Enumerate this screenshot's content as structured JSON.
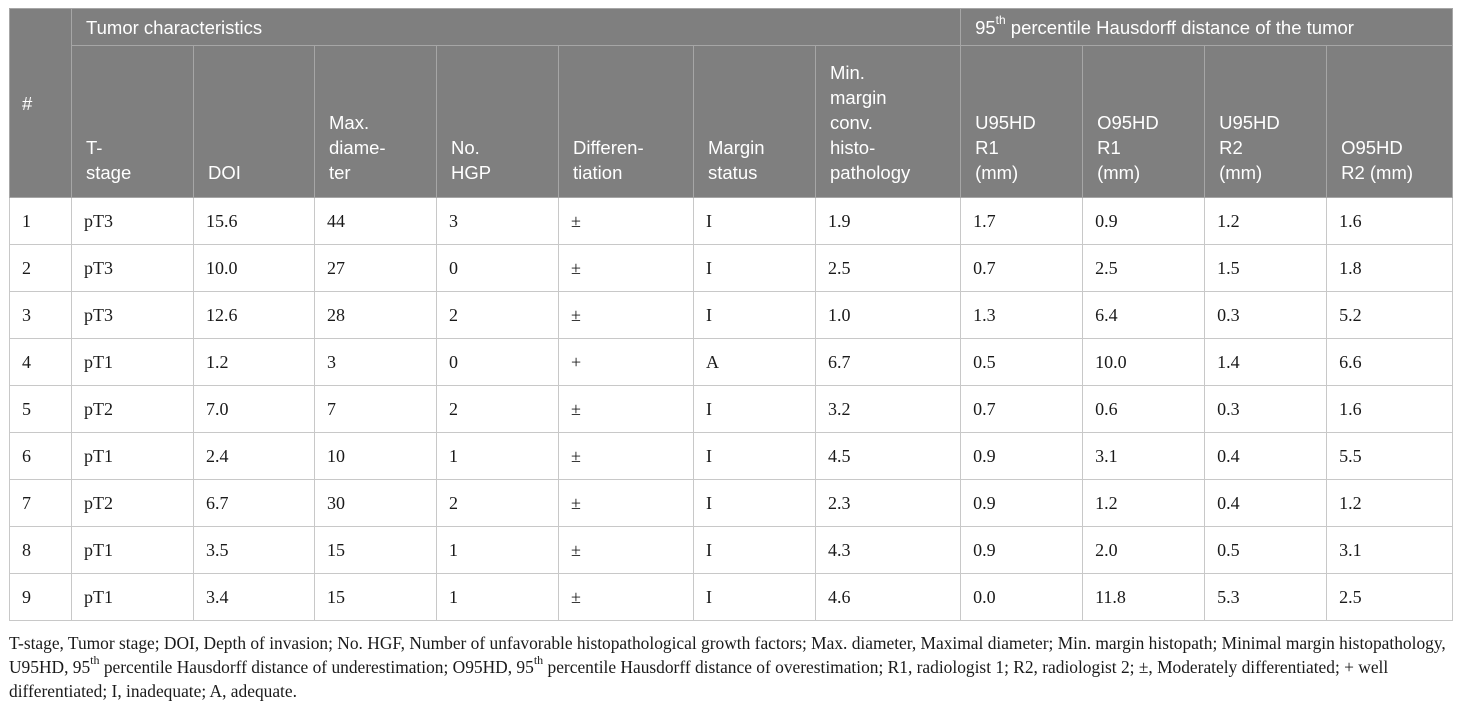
{
  "table": {
    "group_headers": {
      "hash": "#",
      "tumor": "Tumor characteristics",
      "hd_pre": "95",
      "hd_sup": "th",
      "hd_post": " percentile Hausdorff distance of the tumor"
    },
    "columns": [
      "T-\nstage",
      "DOI",
      "Max.\ndiame-\nter",
      "No.\nHGP",
      "Differen-\ntiation",
      "Margin\nstatus",
      "Min.\nmargin\nconv.\nhisto-\npathology",
      "U95HD\nR1\n(mm)",
      "O95HD\nR1\n(mm)",
      "U95HD\nR2\n(mm)",
      "O95HD\nR2 (mm)"
    ],
    "rows": [
      [
        "1",
        "pT3",
        "15.6",
        "44",
        "3",
        "±",
        "I",
        "1.9",
        "1.7",
        "0.9",
        "1.2",
        "1.6"
      ],
      [
        "2",
        "pT3",
        "10.0",
        "27",
        "0",
        "±",
        "I",
        "2.5",
        "0.7",
        "2.5",
        "1.5",
        "1.8"
      ],
      [
        "3",
        "pT3",
        "12.6",
        "28",
        "2",
        "±",
        "I",
        "1.0",
        "1.3",
        "6.4",
        "0.3",
        "5.2"
      ],
      [
        "4",
        "pT1",
        "1.2",
        "3",
        "0",
        "+",
        "A",
        "6.7",
        "0.5",
        "10.0",
        "1.4",
        "6.6"
      ],
      [
        "5",
        "pT2",
        "7.0",
        "7",
        "2",
        "±",
        "I",
        "3.2",
        "0.7",
        "0.6",
        "0.3",
        "1.6"
      ],
      [
        "6",
        "pT1",
        "2.4",
        "10",
        "1",
        "±",
        "I",
        "4.5",
        "0.9",
        "3.1",
        "0.4",
        "5.5"
      ],
      [
        "7",
        "pT2",
        "6.7",
        "30",
        "2",
        "±",
        "I",
        "2.3",
        "0.9",
        "1.2",
        "0.4",
        "1.2"
      ],
      [
        "8",
        "pT1",
        "3.5",
        "15",
        "1",
        "±",
        "I",
        "4.3",
        "0.9",
        "2.0",
        "0.5",
        "3.1"
      ],
      [
        "9",
        "pT1",
        "3.4",
        "15",
        "1",
        "±",
        "I",
        "4.6",
        "0.0",
        "11.8",
        "5.3",
        "2.5"
      ]
    ]
  },
  "footnote": {
    "p1": "T-stage, Tumor stage; DOI, Depth of invasion; No. HGF, Number of unfavorable histopathological growth factors; Max. diameter, Maximal diameter; Min. margin histopath; Minimal margin histopathology, U95HD, 95",
    "s1": "th",
    "p2": " percentile Hausdorff distance of underestimation; O95HD, 95",
    "s2": "th",
    "p3": " percentile Hausdorff distance of overestimation; R1, radiologist 1; R2, radiologist 2; ±, Moderately differentiated; + well differentiated; I, inadequate; A, adequate."
  }
}
